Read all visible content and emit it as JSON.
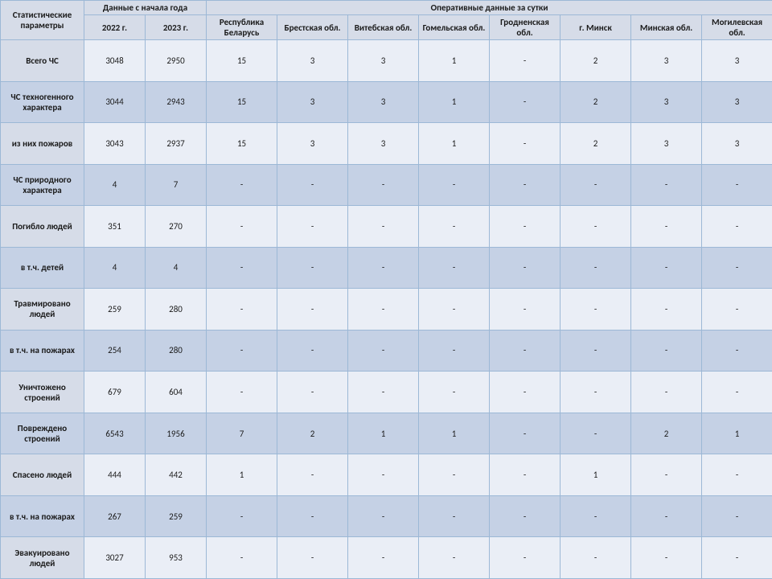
{
  "table": {
    "type": "table",
    "background_color": "#ffffff",
    "border_color": "#9cb8d6",
    "header_bg": "#d6dce8",
    "row_odd_param_bg": "#d6dce8",
    "row_odd_data_bg": "#eaeef6",
    "row_even_bg": "#c5d1e5",
    "font_family": "Calibri",
    "body_fontsize": 11,
    "header_fontsize": 11,
    "header": {
      "param_label": "Статистические параметры",
      "year_group_label": "Данные\nс начала года",
      "daily_group_label": "Оперативные данные за сутки",
      "year_cols": [
        "2022 г.",
        "2023 г."
      ],
      "region_cols": [
        "Республика Беларусь",
        "Брестская обл.",
        "Витебская обл.",
        "Гомельская обл.",
        "Гродненская обл.",
        "г. Минск",
        "Минская обл.",
        "Могилевская обл."
      ]
    },
    "rows": [
      {
        "label": "Всего ЧС",
        "y2022": "3048",
        "y2023": "2950",
        "regions": [
          "15",
          "3",
          "3",
          "1",
          "-",
          "2",
          "3",
          "3"
        ]
      },
      {
        "label": "ЧС техногенного характера",
        "y2022": "3044",
        "y2023": "2943",
        "regions": [
          "15",
          "3",
          "3",
          "1",
          "-",
          "2",
          "3",
          "3"
        ]
      },
      {
        "label": "из них пожаров",
        "y2022": "3043",
        "y2023": "2937",
        "regions": [
          "15",
          "3",
          "3",
          "1",
          "-",
          "2",
          "3",
          "3"
        ]
      },
      {
        "label": "ЧС природного характера",
        "y2022": "4",
        "y2023": "7",
        "regions": [
          "-",
          "-",
          "-",
          "-",
          "-",
          "-",
          "-",
          "-"
        ]
      },
      {
        "label": "Погибло людей",
        "y2022": "351",
        "y2023": "270",
        "regions": [
          "-",
          "-",
          "-",
          "-",
          "-",
          "-",
          "-",
          "-"
        ]
      },
      {
        "label": "в т.ч. детей",
        "y2022": "4",
        "y2023": "4",
        "regions": [
          "-",
          "-",
          "-",
          "-",
          "-",
          "-",
          "-",
          "-"
        ]
      },
      {
        "label": "Травмировано людей",
        "y2022": "259",
        "y2023": "280",
        "regions": [
          "-",
          "-",
          "-",
          "-",
          "-",
          "-",
          "-",
          "-"
        ]
      },
      {
        "label": "в т.ч. на пожарах",
        "y2022": "254",
        "y2023": "280",
        "regions": [
          "-",
          "-",
          "-",
          "-",
          "-",
          "-",
          "-",
          "-"
        ]
      },
      {
        "label": "Уничтожено строений",
        "y2022": "679",
        "y2023": "604",
        "regions": [
          "-",
          "-",
          "-",
          "-",
          "-",
          "-",
          "-",
          "-"
        ]
      },
      {
        "label": "Повреждено строений",
        "y2022": "6543",
        "y2023": "1956",
        "regions": [
          "7",
          "2",
          "1",
          "1",
          "-",
          "-",
          "2",
          "1"
        ]
      },
      {
        "label": "Спасено людей",
        "y2022": "444",
        "y2023": "442",
        "regions": [
          "1",
          "-",
          "-",
          "-",
          "-",
          "1",
          "-",
          "-"
        ]
      },
      {
        "label": "в т.ч. на пожарах",
        "y2022": "267",
        "y2023": "259",
        "regions": [
          "-",
          "-",
          "-",
          "-",
          "-",
          "-",
          "-",
          "-"
        ]
      },
      {
        "label": "Эвакуировано людей",
        "y2022": "3027",
        "y2023": "953",
        "regions": [
          "-",
          "-",
          "-",
          "-",
          "-",
          "-",
          "-",
          "-"
        ]
      }
    ]
  }
}
